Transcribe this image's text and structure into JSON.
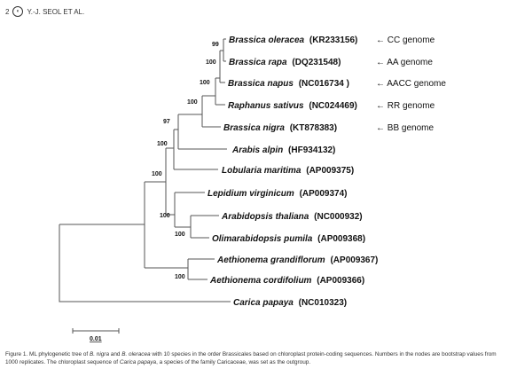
{
  "header": {
    "page_number": "2",
    "running_head": "Y.-J. SEOL ET AL."
  },
  "tree": {
    "taxa": [
      {
        "id": "oleracea",
        "species": "Brassica oleracea",
        "accession": "(KR233156)",
        "genome": "← CC genome"
      },
      {
        "id": "rapa",
        "species": "Brassica rapa",
        "accession": "(DQ231548)",
        "genome": "← AA genome"
      },
      {
        "id": "napus",
        "species": "Brassica napus",
        "accession": "(NC016734 )",
        "genome": "← AACC genome"
      },
      {
        "id": "raphanus",
        "species": "Raphanus sativus",
        "accession": "(NC024469)",
        "genome": "← RR genome"
      },
      {
        "id": "nigra",
        "species": "Brassica nigra",
        "accession": "(KT878383)",
        "genome": "← BB genome"
      },
      {
        "id": "arabis",
        "species": "Arabis alpin",
        "accession": "(HF934132)",
        "genome": ""
      },
      {
        "id": "lobularia",
        "species": "Lobularia maritima",
        "accession": "(AP009375)",
        "genome": ""
      },
      {
        "id": "lepidium",
        "species": "Lepidium virginicum",
        "accession": "(AP009374)",
        "genome": ""
      },
      {
        "id": "arabidopsis",
        "species": "Arabidopsis thaliana",
        "accession": "(NC000932)",
        "genome": ""
      },
      {
        "id": "olimarabidopsis",
        "species": "Olimarabidopsis pumila",
        "accession": "(AP009368)",
        "genome": ""
      },
      {
        "id": "aeth_grand",
        "species": "Aethionema grandiflorum",
        "accession": "(AP009367)",
        "genome": ""
      },
      {
        "id": "aeth_cord",
        "species": "Aethionema cordifolium",
        "accession": "(AP009366)",
        "genome": ""
      },
      {
        "id": "carica",
        "species": "Carica papaya",
        "accession": "(NC010323)",
        "genome": ""
      }
    ],
    "bootstrap": {
      "oleracea_rapa": "99",
      "with_napus": "100",
      "with_raphanus": "100",
      "with_nigra": "100",
      "with_arabis": "97",
      "with_lobularia": "100",
      "brassiceae_plus_lepidium_group": "100",
      "lepidium_group": "100",
      "arabidopsis_olimarabidopsis": "100",
      "aethionema": "100"
    },
    "scale_label": "0.01"
  },
  "caption": {
    "prefix": "Figure 1. ML phylogenetic tree of ",
    "nigra": "B. nigra",
    "and": " and ",
    "oleracea": "B. oleracea",
    "mid": " with 10 species in the order Brassicales based on chloroplast protein-coding sequences. Numbers in the nodes are bootstrap values from 1000 replicates. The chloroplast sequence of ",
    "carica": "Carica papaya",
    "suffix": ", a species of the family Caricaceae, was set as the outgroup."
  }
}
